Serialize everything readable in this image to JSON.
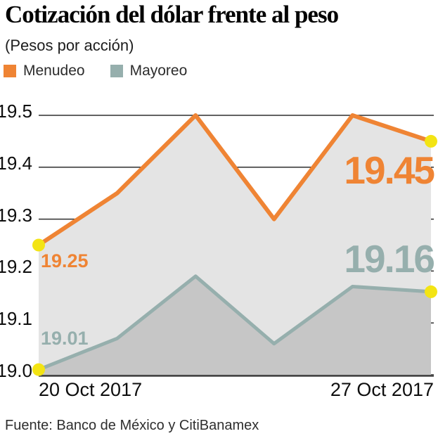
{
  "header": {
    "title": "Cotización del dólar frente al peso",
    "subtitle": "(Pesos por acción)"
  },
  "legend": {
    "items": [
      {
        "label": "Menudeo",
        "color": "#EF8434"
      },
      {
        "label": "Mayoreo",
        "color": "#96AFAD"
      }
    ]
  },
  "chart_data": {
    "type": "area",
    "title": "Cotización del dólar frente al peso",
    "unit_note": "(Pesos por acción)",
    "x_axis_labels": [
      "20 Oct 2017",
      "27 Oct 2017"
    ],
    "n_points": 6,
    "series": [
      {
        "name": "Menudeo",
        "color": "#EF8434",
        "values": [
          19.25,
          19.35,
          19.5,
          19.3,
          19.5,
          19.45
        ],
        "start_label": "19.25",
        "end_label": "19.45"
      },
      {
        "name": "Mayoreo",
        "color": "#96AFAD",
        "values": [
          19.01,
          19.07,
          19.19,
          19.06,
          19.17,
          19.16
        ],
        "start_label": "19.01",
        "end_label": "19.16"
      }
    ],
    "ylim": [
      19.0,
      19.5
    ],
    "yticks": [
      "19.0",
      "19.1",
      "19.2",
      "19.3",
      "19.4",
      "19.5"
    ],
    "grid": "horizontal",
    "legend_position": "top-left",
    "markers": "yellow dots on first and last point of each series"
  },
  "colors": {
    "area_upper": "#E4E4E4",
    "area_lower": "#C6C6C6",
    "grid": "#2E2E2E",
    "axis": "#4A4A4A",
    "marker": "#F3E414"
  },
  "source": "Fuente: Banco de México y CitiBanamex"
}
